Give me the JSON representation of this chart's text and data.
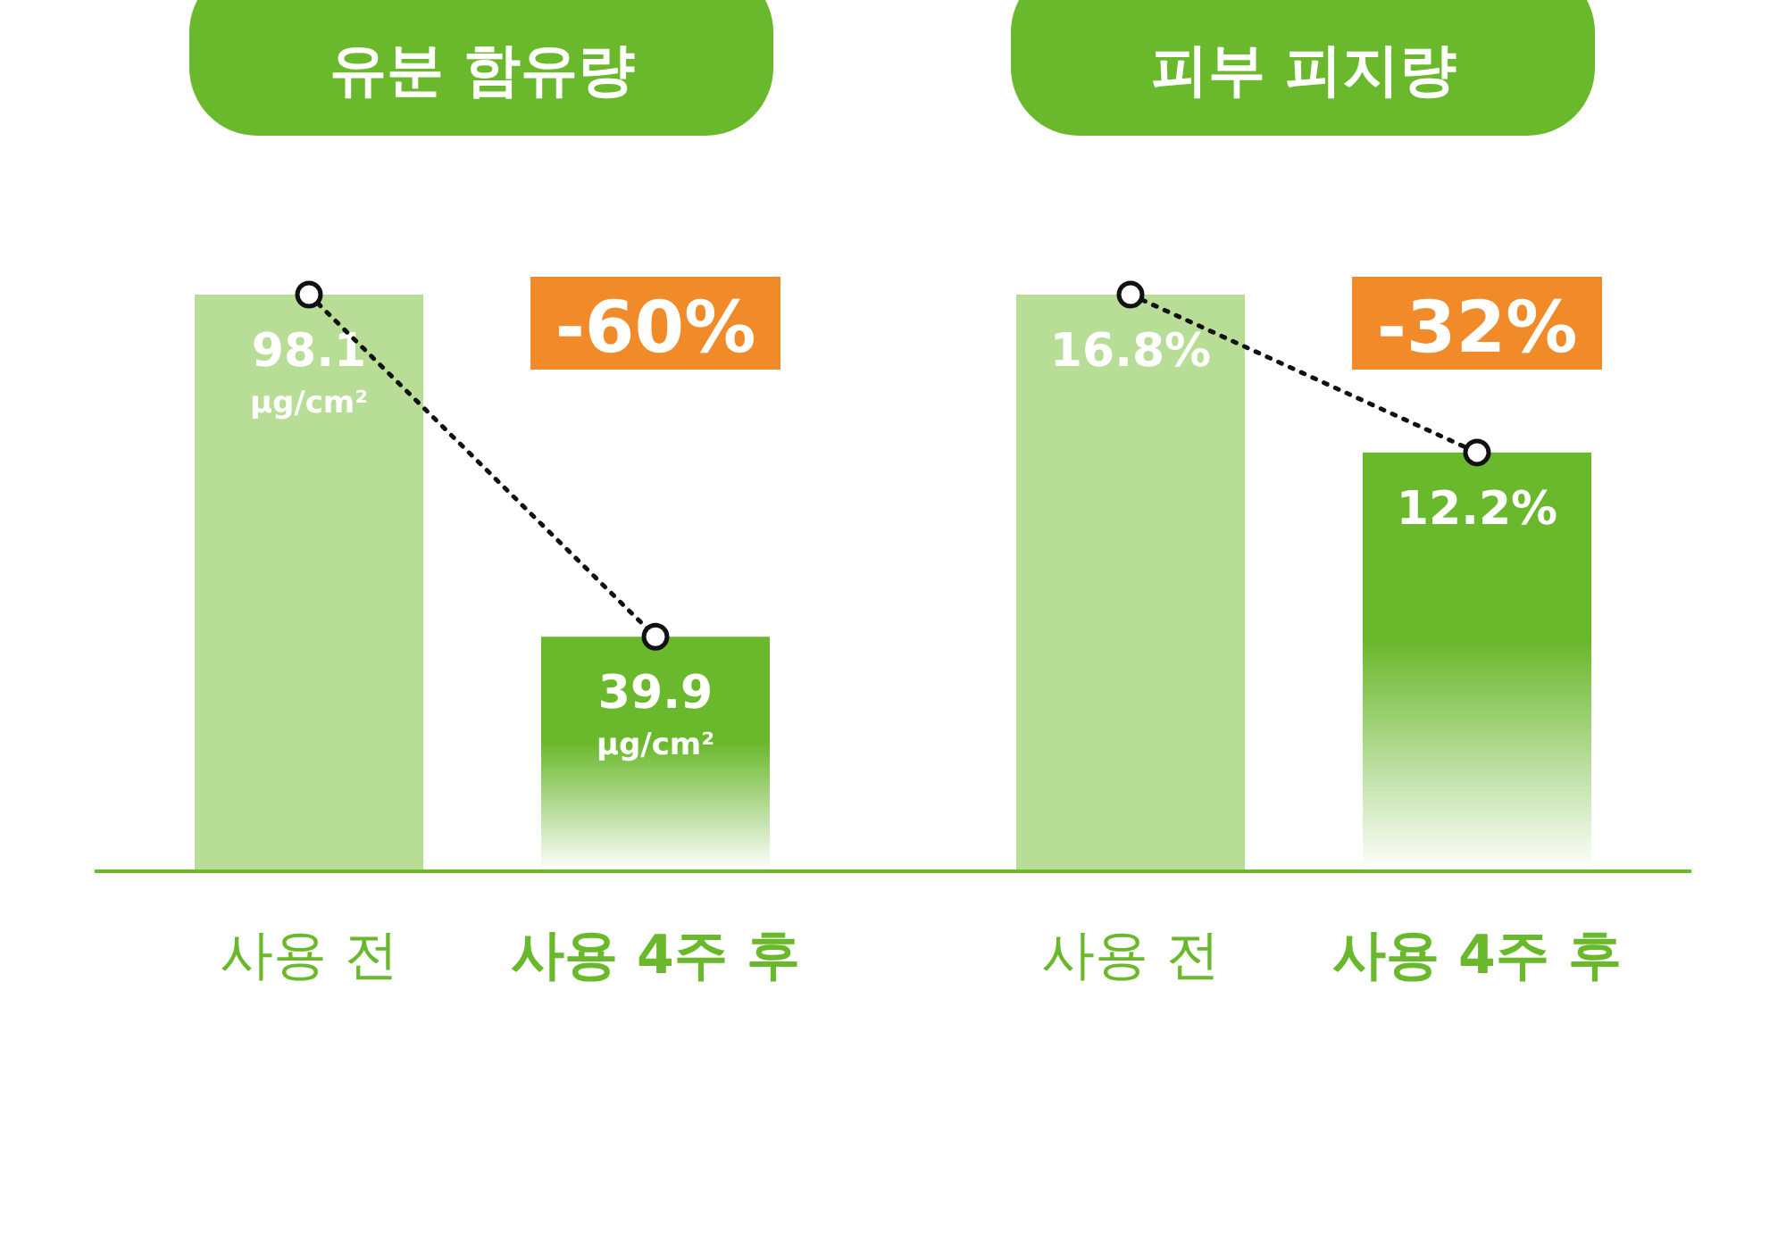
{
  "chart_data": [
    {
      "type": "bar",
      "title": "유분 함유량",
      "categories": [
        "사용 전",
        "사용 4주 후"
      ],
      "annotations": [
        "-60%"
      ],
      "series": [
        {
          "values": [
            98.1,
            39.9
          ],
          "colors": [
            "#b8dd97",
            "#6ab82c"
          ],
          "value_labels": [
            "98.1 μg/cm²",
            "39.9 μg/cm²"
          ]
        },
        {
          "type": "line",
          "values": [
            98.1,
            39.9
          ],
          "color": "#111111",
          "marker": "circle",
          "line_style": "dotted"
        }
      ]
    },
    {
      "type": "bar",
      "title": "피부 피지량",
      "categories": [
        "사용 전",
        "사용 4주 후"
      ],
      "annotations": [
        "-32%"
      ],
      "series": [
        {
          "values": [
            16.8,
            12.2
          ],
          "colors": [
            "#b8dd97",
            "#6ab82c"
          ],
          "value_labels": [
            "16.8%",
            "12.2%"
          ]
        },
        {
          "type": "line",
          "values": [
            16.8,
            12.2
          ],
          "color": "#111111",
          "marker": "circle",
          "line_style": "dotted"
        }
      ]
    }
  ]
}
